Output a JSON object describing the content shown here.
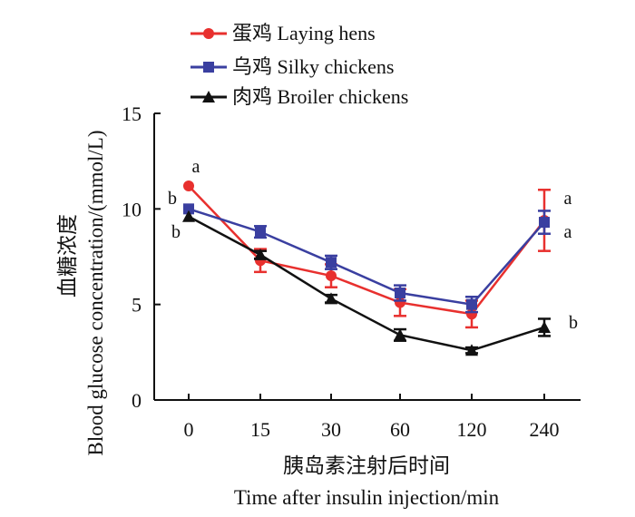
{
  "chart_data": {
    "type": "line",
    "x_ticks": [
      "0",
      "15",
      "30",
      "60",
      "120",
      "240"
    ],
    "ylim": [
      0,
      15
    ],
    "y_ticks": [
      "0",
      "5",
      "10",
      "15"
    ],
    "ylabel_cn": "血糖浓度",
    "ylabel_en": "Blood glucose concentration/(mmol/L)",
    "xlabel_cn": "胰岛素注射后时间",
    "xlabel_en": "Time after insulin injection/min",
    "series": [
      {
        "name": "蛋鸡 Laying hens",
        "color": "#e8302e",
        "marker": "circle",
        "values": [
          11.2,
          7.3,
          6.5,
          5.1,
          4.5,
          9.4
        ],
        "errors": [
          0,
          0.6,
          0.6,
          0.7,
          0.7,
          1.6
        ],
        "sig": [
          "a",
          "",
          "",
          "",
          "",
          "a"
        ]
      },
      {
        "name": "乌鸡 Silky chickens",
        "color": "#3a3fa0",
        "marker": "square",
        "values": [
          10.0,
          8.8,
          7.2,
          5.6,
          5.0,
          9.3
        ],
        "errors": [
          0,
          0.3,
          0.35,
          0.4,
          0.4,
          0.6
        ],
        "sig": [
          "b",
          "",
          "",
          "",
          "",
          "a"
        ]
      },
      {
        "name": "肉鸡 Broiler chickens",
        "color": "#111111",
        "marker": "triangle",
        "values": [
          9.6,
          7.6,
          5.3,
          3.4,
          2.6,
          3.8
        ],
        "errors": [
          0,
          0.2,
          0.2,
          0.3,
          0.15,
          0.45
        ],
        "sig": [
          "b",
          "",
          "",
          "",
          "",
          "b"
        ]
      }
    ]
  }
}
